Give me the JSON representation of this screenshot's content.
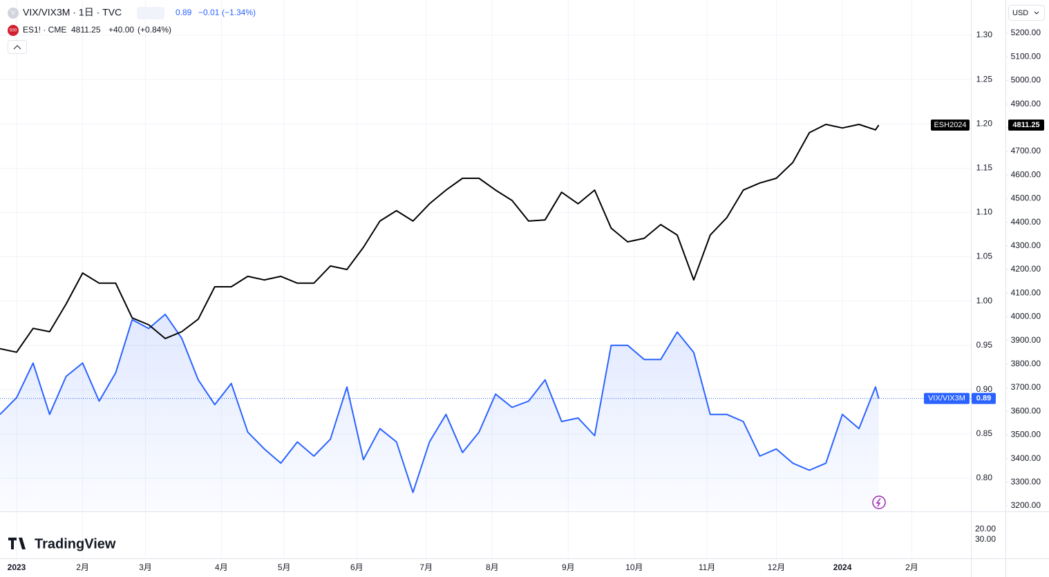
{
  "chart_data": {
    "type": "line",
    "legend": [
      {
        "title": "VIX/VIX3M · 1日 · TVC",
        "change": "−0.01",
        "change_pct": "(−1.34%)",
        "icon": "V"
      },
      {
        "title": "ES1! · CME",
        "change": "+40.00",
        "change_pct": "(+0.84%)",
        "icon": "500"
      }
    ],
    "currency": "USD",
    "brand": "TradingView",
    "x": [
      -5,
      0,
      5,
      10,
      15,
      20,
      25,
      30,
      35,
      40,
      45,
      50,
      55,
      60,
      65,
      70,
      75,
      80,
      85,
      90,
      95,
      100,
      105,
      110,
      115,
      120,
      125,
      130,
      135,
      140,
      145,
      150,
      155,
      160,
      165,
      170,
      175,
      180,
      185,
      190,
      195,
      200,
      205,
      210,
      215,
      220,
      225,
      230,
      235,
      240,
      245,
      250,
      255,
      260,
      261
    ],
    "xlim": [
      -5.02,
      288.9
    ],
    "xticks": [
      {
        "value": 0,
        "label": "2023"
      },
      {
        "value": 20,
        "label": "2月"
      },
      {
        "value": 39,
        "label": "3月"
      },
      {
        "value": 62,
        "label": "4月"
      },
      {
        "value": 81,
        "label": "5月"
      },
      {
        "value": 103,
        "label": "6月"
      },
      {
        "value": 124,
        "label": "7月"
      },
      {
        "value": 144,
        "label": "8月"
      },
      {
        "value": 167,
        "label": "9月"
      },
      {
        "value": 187,
        "label": "10月"
      },
      {
        "value": 209,
        "label": "11月"
      },
      {
        "value": 230,
        "label": "12月"
      },
      {
        "value": 250,
        "label": "2024"
      },
      {
        "value": 271,
        "label": "2月"
      }
    ],
    "series": [
      {
        "name": "VIX/VIX3M",
        "color": "#2962ff",
        "axis": "y",
        "values": [
          0.872,
          0.891,
          0.93,
          0.872,
          0.915,
          0.93,
          0.887,
          0.919,
          0.979,
          0.969,
          0.985,
          0.958,
          0.911,
          0.883,
          0.907,
          0.852,
          0.833,
          0.817,
          0.841,
          0.825,
          0.844,
          0.903,
          0.821,
          0.856,
          0.841,
          0.784,
          0.841,
          0.872,
          0.829,
          0.852,
          0.895,
          0.88,
          0.887,
          0.911,
          0.864,
          0.868,
          0.848,
          0.95,
          0.95,
          0.934,
          0.934,
          0.965,
          0.942,
          0.872,
          0.872,
          0.864,
          0.825,
          0.833,
          0.817,
          0.809,
          0.817,
          0.872,
          0.856,
          0.903,
          0.89
        ]
      },
      {
        "name": "ESH2024",
        "color": "#000000",
        "axis": "y2",
        "values": [
          3865,
          3850,
          3951,
          3937,
          4054,
          4185,
          4142,
          4142,
          3995,
          3966,
          3908,
          3937,
          3990,
          4127,
          4127,
          4171,
          4156,
          4171,
          4142,
          4142,
          4215,
          4200,
          4294,
          4405,
          4449,
          4405,
          4478,
          4536,
          4586,
          4586,
          4536,
          4492,
          4405,
          4410,
          4527,
          4478,
          4536,
          4375,
          4317,
          4332,
          4390,
          4346,
          4156,
          4346,
          4419,
          4536,
          4566,
          4586,
          4653,
          4779,
          4814,
          4799,
          4814,
          4791,
          4811.25
        ]
      }
    ],
    "ylim": [
      0.7626,
      1.3398
    ],
    "yticks": [
      {
        "value": 0.8,
        "label": "0.80"
      },
      {
        "value": 0.85,
        "label": "0.85"
      },
      {
        "value": 0.9,
        "label": "0.90"
      },
      {
        "value": 0.95,
        "label": "0.95"
      },
      {
        "value": 1.0,
        "label": "1.00"
      },
      {
        "value": 1.05,
        "label": "1.05"
      },
      {
        "value": 1.1,
        "label": "1.10"
      },
      {
        "value": 1.15,
        "label": "1.15"
      },
      {
        "value": 1.2,
        "label": "1.20"
      },
      {
        "value": 1.25,
        "label": "1.25"
      },
      {
        "value": 1.3,
        "label": "1.30"
      }
    ],
    "y2lim": [
      3176.6,
      5340.4
    ],
    "y2ticks": [
      {
        "value": 3200,
        "label": "3200.00"
      },
      {
        "value": 3300,
        "label": "3300.00"
      },
      {
        "value": 3400,
        "label": "3400.00"
      },
      {
        "value": 3500,
        "label": "3500.00"
      },
      {
        "value": 3600,
        "label": "3600.00"
      },
      {
        "value": 3700,
        "label": "3700.00"
      },
      {
        "value": 3800,
        "label": "3800.00"
      },
      {
        "value": 3900,
        "label": "3900.00"
      },
      {
        "value": 4000,
        "label": "4000.00"
      },
      {
        "value": 4100,
        "label": "4100.00"
      },
      {
        "value": 4200,
        "label": "4200.00"
      },
      {
        "value": 4300,
        "label": "4300.00"
      },
      {
        "value": 4400,
        "label": "4400.00"
      },
      {
        "value": 4500,
        "label": "4500.00"
      },
      {
        "value": 4600,
        "label": "4600.00"
      },
      {
        "value": 4700,
        "label": "4700.00"
      },
      {
        "value": 4800,
        "label": "4800.00"
      },
      {
        "value": 4900,
        "label": "4900.00"
      },
      {
        "value": 5000,
        "label": "5000.00"
      },
      {
        "value": 5100,
        "label": "5100.00"
      },
      {
        "value": 5200,
        "label": "5200.00"
      }
    ],
    "lower_pane_labels": [
      "20.00",
      "30.00"
    ],
    "grid": true
  }
}
